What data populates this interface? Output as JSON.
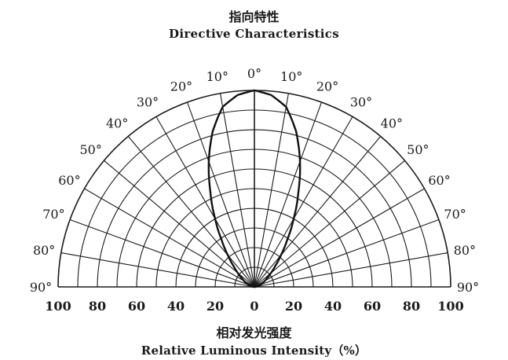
{
  "chart_data": {
    "type": "polar",
    "title": "指向特性",
    "subtitle": "Directive Characteristics",
    "xlabel_cn": "相对发光强度",
    "xlabel_en": "Relative Luminous Intensity（%）",
    "angle_labels": [
      "0°",
      "10°",
      "20°",
      "30°",
      "40°",
      "50°",
      "60°",
      "70°",
      "80°",
      "90°"
    ],
    "angles_deg": [
      0,
      10,
      20,
      30,
      40,
      50,
      60,
      70,
      80,
      90
    ],
    "radial_ticks": [
      0,
      20,
      40,
      60,
      80,
      100
    ],
    "r_range": [
      0,
      100
    ],
    "angular_range_deg": [
      -90,
      90
    ],
    "grid": true,
    "series": [
      {
        "angles_deg": [
          0,
          5,
          10,
          15,
          20,
          25,
          30,
          35,
          40,
          45,
          50,
          55,
          60,
          70,
          80,
          90
        ],
        "values": [
          100,
          98,
          93,
          82,
          68,
          53,
          40,
          29,
          21,
          15,
          11,
          8,
          6,
          3,
          1,
          0
        ]
      }
    ]
  }
}
